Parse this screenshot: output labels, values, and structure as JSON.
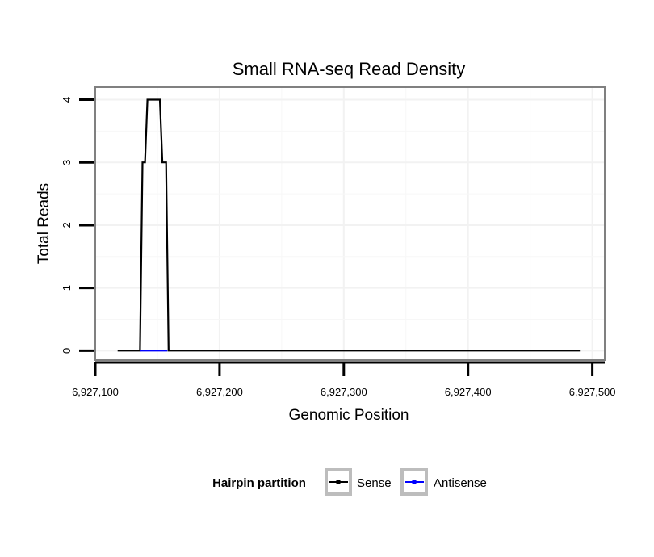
{
  "chart_data": {
    "type": "line",
    "title": "Small RNA-seq Read Density",
    "xlabel": "Genomic Position",
    "ylabel": "Total Reads",
    "xlim": [
      6927100,
      6927510
    ],
    "ylim": [
      -0.15,
      4.2
    ],
    "x_ticks": [
      6927100,
      6927200,
      6927300,
      6927400,
      6927500
    ],
    "x_tick_labels": [
      "6,927,100",
      "6,927,200",
      "6,927,300",
      "6,927,400",
      "6,927,500"
    ],
    "y_ticks": [
      0,
      1,
      2,
      3,
      4
    ],
    "y_tick_labels": [
      "0",
      "1",
      "2",
      "3",
      "4"
    ],
    "grid": true,
    "legend": {
      "title": "Hairpin partition",
      "position": "bottom",
      "entries": [
        "Sense",
        "Antisense"
      ]
    },
    "series": [
      {
        "name": "Sense",
        "color": "#000000",
        "x": [
          6927118,
          6927136,
          6927138,
          6927140,
          6927142,
          6927152,
          6927154,
          6927157,
          6927159,
          6927490
        ],
        "y": [
          0,
          0,
          3,
          3,
          4,
          4,
          3,
          3,
          0,
          0
        ]
      },
      {
        "name": "Antisense",
        "color": "#0000ff",
        "x": [
          6927136,
          6927158
        ],
        "y": [
          0,
          0
        ]
      }
    ]
  }
}
